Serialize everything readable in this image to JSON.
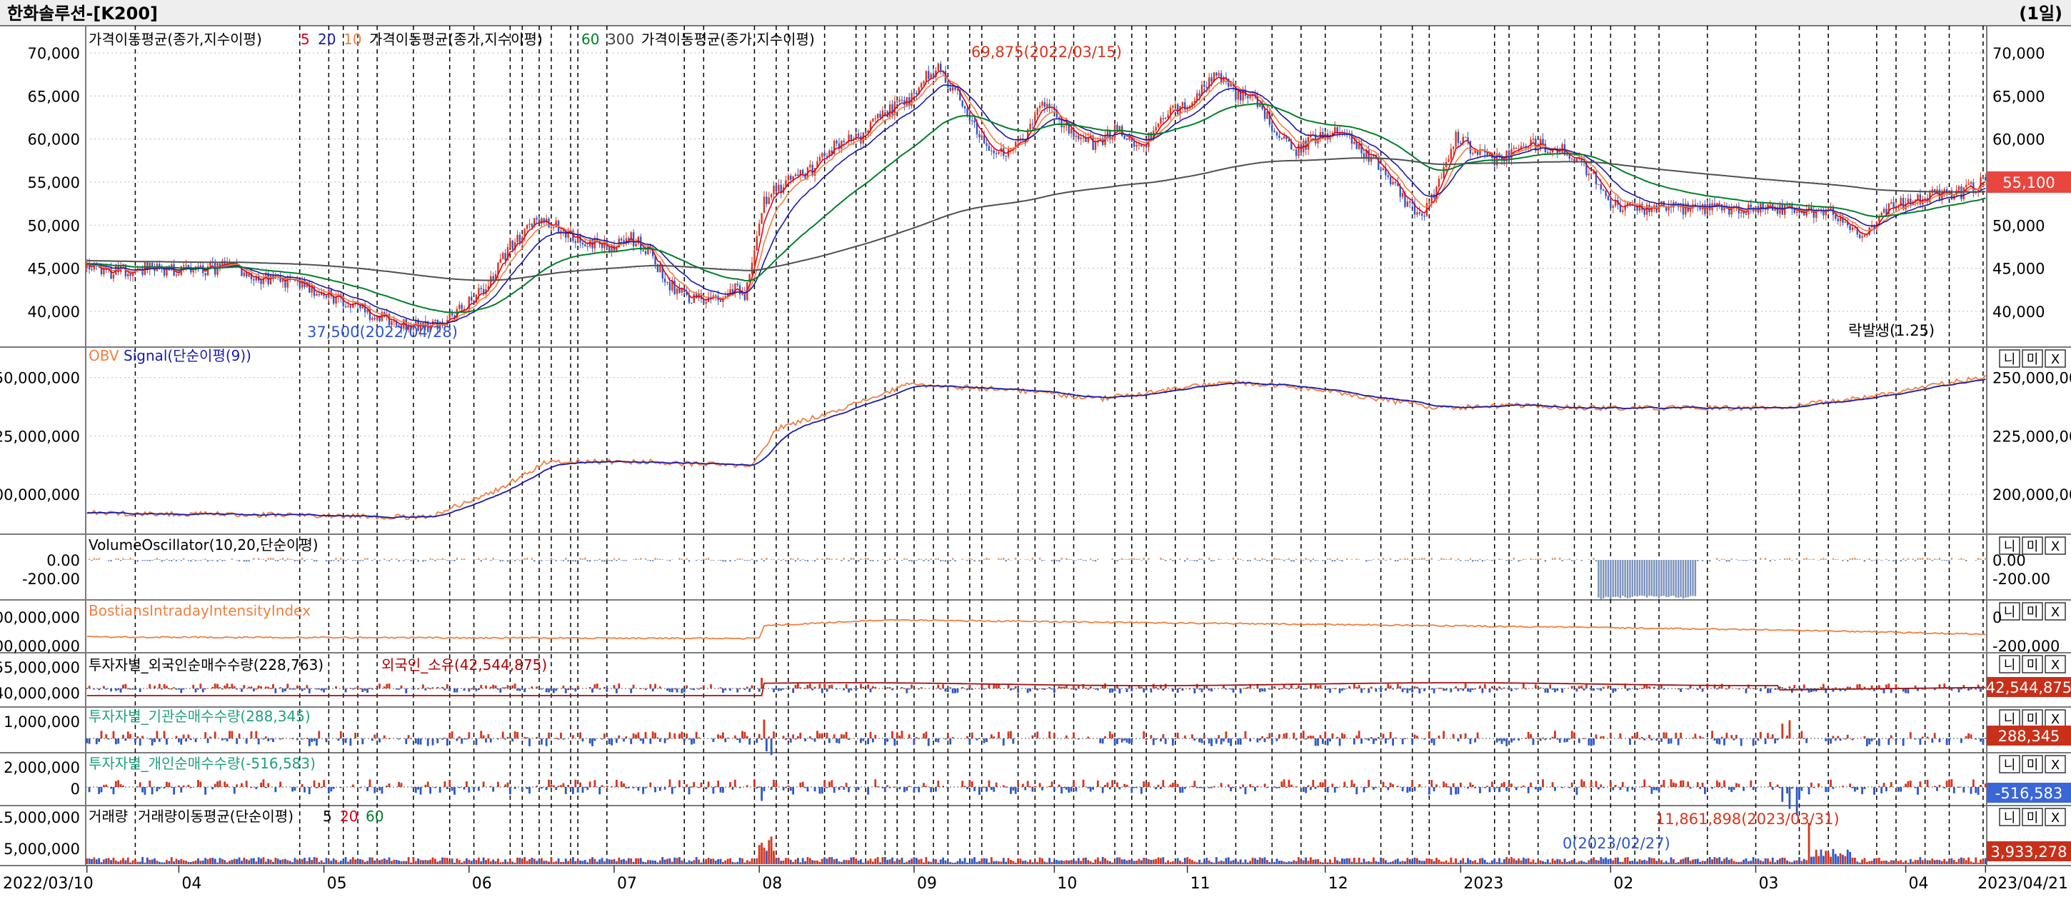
{
  "window": {
    "title": "한화솔루션-[K200]",
    "period_label": "(1일)"
  },
  "panels": {
    "price": {
      "legend": [
        {
          "text": "가격이동평균(종가,지수이평)",
          "color": "#000000"
        },
        {
          "text": "5",
          "color": "#e0001a"
        },
        {
          "text": "20",
          "color": "#1a1aa8"
        },
        {
          "text": "10",
          "color": "#f08040"
        },
        {
          "text": "가격이동평균(종가,지수이평)",
          "color": "#000000"
        },
        {
          "text": "60",
          "color": "#00802a"
        },
        {
          "text": "300",
          "color": "#404040"
        },
        {
          "text": "가격이동평균(종가,지수이평)",
          "color": "#000000"
        }
      ],
      "annotations": {
        "high": "69,875(2022/03/15)",
        "low": "37,500(2022/04/28)",
        "event": "락발생(1.25)"
      },
      "last_price": "55,100",
      "axis_ticks": [
        "70,000",
        "65,000",
        "60,000",
        "55,000",
        "50,000",
        "45,000",
        "40,000"
      ]
    },
    "obv": {
      "legend": [
        {
          "text": "OBV",
          "color": "#f08040"
        },
        {
          "text": "Signal(단순이평(9))",
          "color": "#1a1aa8"
        }
      ],
      "left_ticks": [
        "50,000,000",
        "25,000,000",
        "00,000,000"
      ],
      "right_ticks": [
        "250,000,000",
        "225,000,000",
        "200,000,000"
      ]
    },
    "volosc": {
      "legend": [
        {
          "text": "VolumeOscillator(10,20,단순이평)",
          "color": "#000000"
        }
      ],
      "left_ticks": [
        "0.00",
        "-200.00"
      ],
      "right_ticks": [
        "0.00",
        "-200.00"
      ]
    },
    "bostian": {
      "legend": [
        {
          "text": "BostiansIntradayIntensityIndex",
          "color": "#f08040"
        }
      ],
      "left_ticks": [
        "00,000,000",
        "00,000,000"
      ],
      "right_ticks": [
        "0",
        "-200,000"
      ]
    },
    "foreign": {
      "legend": [
        {
          "text": "투자자별_외국인순매수수량(228,763)",
          "color": "#000000"
        },
        {
          "text": "외국인_소유(42,544,875)",
          "color": "#b00000"
        }
      ],
      "left_ticks": [
        "55,000,000",
        "40,000,000"
      ],
      "last_value": "42,544,875"
    },
    "institution": {
      "legend": [
        {
          "text": "투자자별_기관순매수수량(288,345)",
          "color": "#20a080"
        }
      ],
      "left_ticks": [
        "1,000,000"
      ],
      "last_value": "288,345"
    },
    "individual": {
      "legend": [
        {
          "text": "투자자별_개인순매수수량(-516,583)",
          "color": "#20a080"
        }
      ],
      "left_ticks": [
        "2,000,000",
        "0"
      ],
      "last_value": "-516,583"
    },
    "volume": {
      "legend": [
        {
          "text": "거래량",
          "color": "#000000"
        },
        {
          "text": "거래량이동평균(단순이평)",
          "color": "#000000"
        },
        {
          "text": "5",
          "color": "#000000"
        },
        {
          "text": "20",
          "color": "#e0001a"
        },
        {
          "text": "60",
          "color": "#00802a"
        }
      ],
      "left_ticks": [
        "15,000,000",
        "5,000,000"
      ],
      "annotations": {
        "high": "11,861,898(2023/03/31)",
        "low": "0(2023/02/27)"
      },
      "last_value": "3,933,278"
    }
  },
  "x_axis": {
    "labels": [
      "2022/03/10",
      "04",
      "05",
      "06",
      "07",
      "08",
      "09",
      "10",
      "11",
      "12",
      "2023",
      "02",
      "03",
      "04",
      "2023/04/21"
    ]
  },
  "panel_buttons": [
    "니",
    "미",
    "X"
  ],
  "colors": {
    "up": "#d8341c",
    "down": "#2d57c8",
    "ma5": "#e0001a",
    "ma10": "#f08040",
    "ma20": "#1a1aa8",
    "ma60": "#00802a",
    "ma300": "#505050",
    "badge_price": "#e8463e",
    "badge_blue": "#3a66d8"
  },
  "chart_data": {
    "type": "candlestick",
    "title": "한화솔루션-[K200]",
    "x_range": [
      "2022/03/10",
      "2023/04/21"
    ],
    "ylim": [
      37000,
      72000
    ],
    "price_path": [
      [
        0,
        45000
      ],
      [
        10,
        44500
      ],
      [
        22,
        45000
      ],
      [
        45,
        44800
      ],
      [
        60,
        45200
      ],
      [
        70,
        43800
      ],
      [
        80,
        43500
      ],
      [
        95,
        42500
      ],
      [
        105,
        41200
      ],
      [
        115,
        40000
      ],
      [
        125,
        39000
      ],
      [
        135,
        38200
      ],
      [
        145,
        38500
      ],
      [
        155,
        40500
      ],
      [
        165,
        43000
      ],
      [
        175,
        47500
      ],
      [
        185,
        50200
      ],
      [
        195,
        49800
      ],
      [
        205,
        48000
      ],
      [
        215,
        47500
      ],
      [
        225,
        48500
      ],
      [
        232,
        47000
      ],
      [
        240,
        43200
      ],
      [
        250,
        41500
      ],
      [
        260,
        41000
      ],
      [
        268,
        42500
      ],
      [
        272,
        41800
      ],
      [
        280,
        53000
      ],
      [
        290,
        55000
      ],
      [
        300,
        56500
      ],
      [
        310,
        59500
      ],
      [
        320,
        60200
      ],
      [
        330,
        63000
      ],
      [
        340,
        64500
      ],
      [
        346,
        67000
      ],
      [
        352,
        68000
      ],
      [
        358,
        66000
      ],
      [
        366,
        62000
      ],
      [
        376,
        58000
      ],
      [
        386,
        59500
      ],
      [
        396,
        64500
      ],
      [
        406,
        61000
      ],
      [
        416,
        59500
      ],
      [
        426,
        61000
      ],
      [
        436,
        59000
      ],
      [
        446,
        62500
      ],
      [
        456,
        64500
      ],
      [
        466,
        67500
      ],
      [
        474,
        65500
      ],
      [
        482,
        64500
      ],
      [
        492,
        61000
      ],
      [
        500,
        58500
      ],
      [
        510,
        60500
      ],
      [
        520,
        61000
      ],
      [
        530,
        58000
      ],
      [
        540,
        55000
      ],
      [
        546,
        52500
      ],
      [
        552,
        50500
      ],
      [
        560,
        56000
      ],
      [
        566,
        60500
      ],
      [
        572,
        59000
      ],
      [
        580,
        57500
      ],
      [
        590,
        58500
      ],
      [
        600,
        59500
      ],
      [
        612,
        58500
      ],
      [
        622,
        56000
      ],
      [
        628,
        53000
      ],
      [
        634,
        52000
      ],
      [
        645,
        52000
      ],
      [
        700,
        52000
      ],
      [
        720,
        51500
      ],
      [
        728,
        50000
      ],
      [
        735,
        49000
      ],
      [
        745,
        52000
      ],
      [
        755,
        53000
      ],
      [
        766,
        53500
      ],
      [
        775,
        53800
      ],
      [
        785,
        55100
      ]
    ],
    "price_extremes": {
      "high": 69875,
      "high_date": "2022/03/15",
      "low": 37500,
      "low_date": "2022/04/28",
      "last": 55100
    },
    "series": [
      {
        "name": "5",
        "smoothing": 5
      },
      {
        "name": "10",
        "smoothing": 10
      },
      {
        "name": "20",
        "smoothing": 20
      },
      {
        "name": "60",
        "smoothing": 60
      },
      {
        "name": "300",
        "smoothing": 300
      }
    ],
    "obv_path": [
      [
        0,
        192000000
      ],
      [
        100,
        191000000
      ],
      [
        140,
        190000000
      ],
      [
        170,
        202000000
      ],
      [
        190,
        214000000
      ],
      [
        230,
        214000000
      ],
      [
        275,
        212000000
      ],
      [
        285,
        228000000
      ],
      [
        310,
        236000000
      ],
      [
        340,
        247000000
      ],
      [
        380,
        245000000
      ],
      [
        420,
        241000000
      ],
      [
        470,
        248000000
      ],
      [
        500,
        246000000
      ],
      [
        540,
        240000000
      ],
      [
        560,
        237000000
      ],
      [
        590,
        238000000
      ],
      [
        620,
        237000000
      ],
      [
        700,
        237000000
      ],
      [
        745,
        243000000
      ],
      [
        770,
        248000000
      ],
      [
        785,
        250000000
      ]
    ],
    "obv_ylim": [
      186000000,
      260000000
    ]
  }
}
